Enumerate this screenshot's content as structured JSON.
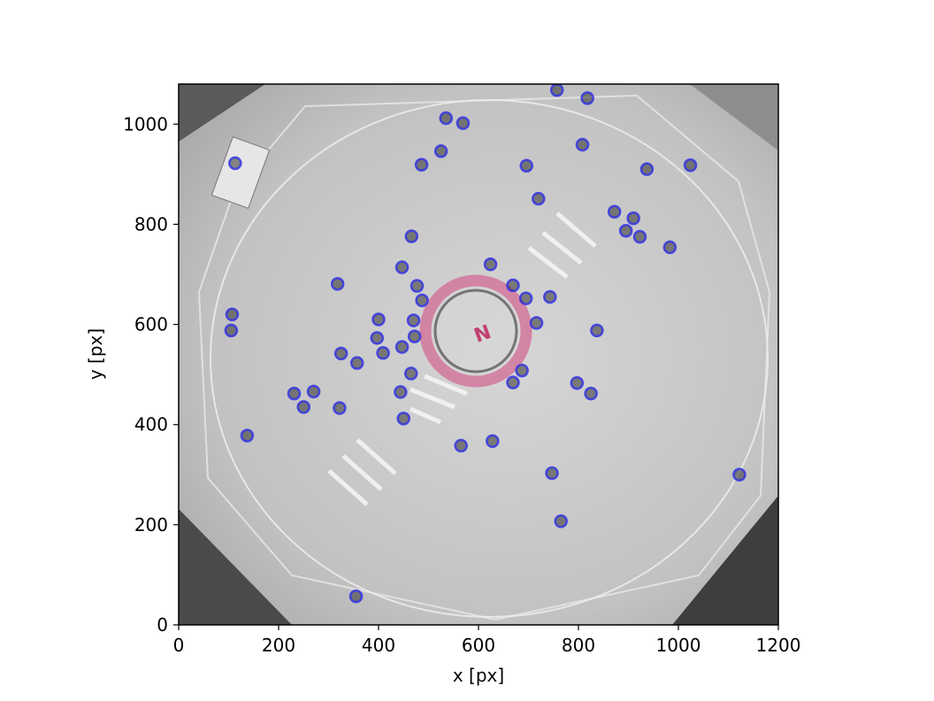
{
  "chart_data": {
    "type": "scatter",
    "title": "",
    "xlabel": "x [px]",
    "ylabel": "y [px]",
    "xlim": [
      0,
      1200
    ],
    "ylim": [
      0,
      1080
    ],
    "x_ticks": [
      0,
      200,
      400,
      600,
      800,
      1000,
      1200
    ],
    "y_ticks": [
      0,
      200,
      400,
      600,
      800,
      1000
    ],
    "grid": false,
    "background": "grayscale arena photo",
    "series": [
      {
        "marker": "circle-outline",
        "color": "#3030e0",
        "points": [
          [
            113,
            922
          ],
          [
            107,
            620
          ],
          [
            105,
            588
          ],
          [
            137,
            378
          ],
          [
            318,
            681
          ],
          [
            325,
            542
          ],
          [
            357,
            523
          ],
          [
            322,
            433
          ],
          [
            231,
            462
          ],
          [
            250,
            435
          ],
          [
            270,
            466
          ],
          [
            400,
            610
          ],
          [
            397,
            573
          ],
          [
            409,
            543
          ],
          [
            447,
            714
          ],
          [
            466,
            776
          ],
          [
            477,
            677
          ],
          [
            487,
            648
          ],
          [
            470,
            608
          ],
          [
            472,
            576
          ],
          [
            447,
            555
          ],
          [
            465,
            502
          ],
          [
            444,
            465
          ],
          [
            450,
            412
          ],
          [
            486,
            919
          ],
          [
            525,
            946
          ],
          [
            535,
            1012
          ],
          [
            569,
            1002
          ],
          [
            624,
            720
          ],
          [
            669,
            678
          ],
          [
            695,
            652
          ],
          [
            716,
            603
          ],
          [
            687,
            508
          ],
          [
            669,
            484
          ],
          [
            743,
            655
          ],
          [
            565,
            358
          ],
          [
            628,
            367
          ],
          [
            747,
            303
          ],
          [
            765,
            207
          ],
          [
            696,
            917
          ],
          [
            720,
            851
          ],
          [
            757,
            1068
          ],
          [
            818,
            1052
          ],
          [
            808,
            959
          ],
          [
            872,
            825
          ],
          [
            910,
            812
          ],
          [
            895,
            787
          ],
          [
            923,
            775
          ],
          [
            983,
            754
          ],
          [
            937,
            910
          ],
          [
            1024,
            918
          ],
          [
            837,
            588
          ],
          [
            797,
            483
          ],
          [
            825,
            462
          ],
          [
            1122,
            300
          ],
          [
            355,
            57
          ]
        ]
      }
    ],
    "annotation": "N"
  },
  "colors": {
    "marker": "#3030e0",
    "center_ring": "#d26a94",
    "arena_background": "#bdbdbd"
  }
}
